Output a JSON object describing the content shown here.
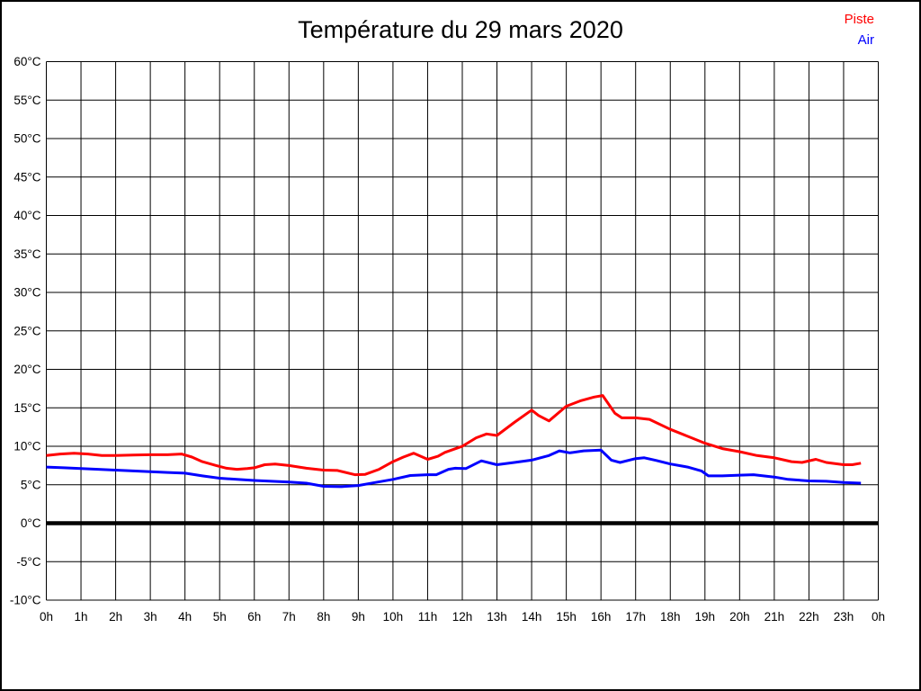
{
  "chart_data": {
    "type": "line",
    "title": "Température du 29 mars 2020",
    "xlabel": "",
    "ylabel": "",
    "xlim": [
      0,
      24
    ],
    "ylim": [
      -10,
      60
    ],
    "grid": true,
    "legend_position": "top-right",
    "zero_line": {
      "value": 0,
      "color": "#000000"
    },
    "x_ticks": [
      {
        "v": 0,
        "label": "0h"
      },
      {
        "v": 1,
        "label": "1h"
      },
      {
        "v": 2,
        "label": "2h"
      },
      {
        "v": 3,
        "label": "3h"
      },
      {
        "v": 4,
        "label": "4h"
      },
      {
        "v": 5,
        "label": "5h"
      },
      {
        "v": 6,
        "label": "6h"
      },
      {
        "v": 7,
        "label": "7h"
      },
      {
        "v": 8,
        "label": "8h"
      },
      {
        "v": 9,
        "label": "9h"
      },
      {
        "v": 10,
        "label": "10h"
      },
      {
        "v": 11,
        "label": "11h"
      },
      {
        "v": 12,
        "label": "12h"
      },
      {
        "v": 13,
        "label": "13h"
      },
      {
        "v": 14,
        "label": "14h"
      },
      {
        "v": 15,
        "label": "15h"
      },
      {
        "v": 16,
        "label": "16h"
      },
      {
        "v": 17,
        "label": "17h"
      },
      {
        "v": 18,
        "label": "18h"
      },
      {
        "v": 19,
        "label": "19h"
      },
      {
        "v": 20,
        "label": "20h"
      },
      {
        "v": 21,
        "label": "21h"
      },
      {
        "v": 22,
        "label": "22h"
      },
      {
        "v": 23,
        "label": "23h"
      },
      {
        "v": 24,
        "label": "0h"
      }
    ],
    "y_ticks": [
      {
        "v": 60,
        "label": "60°C"
      },
      {
        "v": 55,
        "label": "55°C"
      },
      {
        "v": 50,
        "label": "50°C"
      },
      {
        "v": 45,
        "label": "45°C"
      },
      {
        "v": 40,
        "label": "40°C"
      },
      {
        "v": 35,
        "label": "35°C"
      },
      {
        "v": 30,
        "label": "30°C"
      },
      {
        "v": 25,
        "label": "25°C"
      },
      {
        "v": 20,
        "label": "20°C"
      },
      {
        "v": 15,
        "label": "15°C"
      },
      {
        "v": 10,
        "label": "10°C"
      },
      {
        "v": 5,
        "label": "5°C"
      },
      {
        "v": 0,
        "label": "0°C"
      },
      {
        "v": -5,
        "label": "-5°C"
      },
      {
        "v": -10,
        "label": "-10°C"
      }
    ],
    "series": [
      {
        "name": "Piste",
        "color": "#ff0000",
        "points": [
          [
            0,
            8.8
          ],
          [
            0.4,
            9.0
          ],
          [
            0.8,
            9.1
          ],
          [
            1.2,
            9.0
          ],
          [
            1.6,
            8.8
          ],
          [
            2,
            8.8
          ],
          [
            2.5,
            8.85
          ],
          [
            3,
            8.9
          ],
          [
            3.5,
            8.9
          ],
          [
            3.9,
            9.0
          ],
          [
            4.2,
            8.6
          ],
          [
            4.5,
            8.0
          ],
          [
            4.9,
            7.5
          ],
          [
            5.2,
            7.15
          ],
          [
            5.5,
            7.0
          ],
          [
            5.8,
            7.1
          ],
          [
            6,
            7.2
          ],
          [
            6.3,
            7.6
          ],
          [
            6.6,
            7.7
          ],
          [
            7,
            7.5
          ],
          [
            7.5,
            7.15
          ],
          [
            8,
            6.9
          ],
          [
            8.4,
            6.85
          ],
          [
            8.9,
            6.3
          ],
          [
            9.2,
            6.35
          ],
          [
            9.6,
            7.0
          ],
          [
            10,
            8.0
          ],
          [
            10.3,
            8.6
          ],
          [
            10.6,
            9.1
          ],
          [
            11,
            8.3
          ],
          [
            11.3,
            8.7
          ],
          [
            11.5,
            9.2
          ],
          [
            12,
            10.0
          ],
          [
            12.4,
            11.1
          ],
          [
            12.7,
            11.6
          ],
          [
            13,
            11.4
          ],
          [
            13.5,
            13.1
          ],
          [
            14,
            14.7
          ],
          [
            14.2,
            14.0
          ],
          [
            14.5,
            13.3
          ],
          [
            15,
            15.2
          ],
          [
            15.4,
            15.9
          ],
          [
            15.8,
            16.4
          ],
          [
            16.05,
            16.6
          ],
          [
            16.4,
            14.3
          ],
          [
            16.6,
            13.7
          ],
          [
            17,
            13.7
          ],
          [
            17.4,
            13.5
          ],
          [
            18,
            12.2
          ],
          [
            18.5,
            11.3
          ],
          [
            19,
            10.4
          ],
          [
            19.5,
            9.7
          ],
          [
            20,
            9.3
          ],
          [
            20.5,
            8.8
          ],
          [
            21,
            8.5
          ],
          [
            21.5,
            8.0
          ],
          [
            21.8,
            7.9
          ],
          [
            22.2,
            8.3
          ],
          [
            22.5,
            7.9
          ],
          [
            23,
            7.6
          ],
          [
            23.25,
            7.6
          ],
          [
            23.5,
            7.8
          ]
        ]
      },
      {
        "name": "Air",
        "color": "#0000ff",
        "points": [
          [
            0,
            7.3
          ],
          [
            0.5,
            7.2
          ],
          [
            1,
            7.1
          ],
          [
            1.5,
            7.0
          ],
          [
            2,
            6.9
          ],
          [
            2.5,
            6.8
          ],
          [
            3,
            6.7
          ],
          [
            3.5,
            6.6
          ],
          [
            4,
            6.5
          ],
          [
            4.5,
            6.15
          ],
          [
            5,
            5.85
          ],
          [
            5.5,
            5.7
          ],
          [
            6,
            5.55
          ],
          [
            6.5,
            5.45
          ],
          [
            7,
            5.35
          ],
          [
            7.5,
            5.2
          ],
          [
            8,
            4.8
          ],
          [
            8.5,
            4.75
          ],
          [
            9,
            4.9
          ],
          [
            9.5,
            5.3
          ],
          [
            10,
            5.7
          ],
          [
            10.5,
            6.2
          ],
          [
            11,
            6.3
          ],
          [
            11.25,
            6.3
          ],
          [
            11.6,
            7.0
          ],
          [
            11.8,
            7.15
          ],
          [
            12.1,
            7.1
          ],
          [
            12.55,
            8.1
          ],
          [
            13,
            7.6
          ],
          [
            13.5,
            7.9
          ],
          [
            14,
            8.2
          ],
          [
            14.5,
            8.8
          ],
          [
            14.8,
            9.4
          ],
          [
            15.1,
            9.15
          ],
          [
            15.5,
            9.4
          ],
          [
            16,
            9.5
          ],
          [
            16.3,
            8.2
          ],
          [
            16.55,
            7.9
          ],
          [
            17,
            8.4
          ],
          [
            17.25,
            8.5
          ],
          [
            17.6,
            8.15
          ],
          [
            18,
            7.7
          ],
          [
            18.5,
            7.3
          ],
          [
            18.9,
            6.8
          ],
          [
            19.1,
            6.15
          ],
          [
            19.5,
            6.15
          ],
          [
            20,
            6.25
          ],
          [
            20.4,
            6.3
          ],
          [
            21,
            6.0
          ],
          [
            21.4,
            5.7
          ],
          [
            22,
            5.5
          ],
          [
            22.5,
            5.45
          ],
          [
            23,
            5.3
          ],
          [
            23.5,
            5.2
          ]
        ]
      }
    ]
  }
}
